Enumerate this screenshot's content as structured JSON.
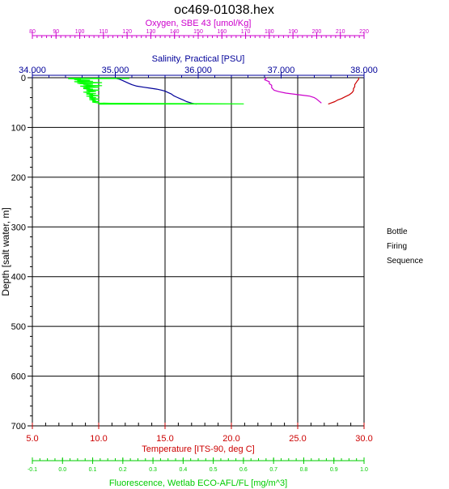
{
  "chart_data": {
    "type": "line",
    "title": "oc469-01038.hex",
    "y_axis": {
      "label": "Depth [salt water, m]",
      "range": [
        0,
        700
      ],
      "inverted": true,
      "ticks": [
        0,
        100,
        200,
        300,
        400,
        500,
        600,
        700
      ],
      "tick_labels": [
        "0",
        "100",
        "200",
        "300",
        "400",
        "500",
        "600",
        "700"
      ],
      "color": "#000000"
    },
    "x_axes": [
      {
        "id": "oxygen",
        "label": "Oxygen, SBE 43 [umol/Kg]",
        "position": "top",
        "range": [
          80,
          220
        ],
        "ticks": [
          80,
          90,
          100,
          110,
          120,
          130,
          140,
          150,
          160,
          170,
          180,
          190,
          200,
          210,
          220
        ],
        "tick_labels": [
          "80",
          "90",
          "100",
          "110",
          "120",
          "130",
          "140",
          "150",
          "160",
          "170",
          "180",
          "190",
          "200",
          "210",
          "220"
        ],
        "color": "#cc00cc"
      },
      {
        "id": "salinity",
        "label": "Salinity, Practical [PSU]",
        "position": "top",
        "range": [
          34.0,
          38.0
        ],
        "ticks": [
          34.0,
          35.0,
          36.0,
          37.0,
          38.0
        ],
        "tick_labels": [
          "34.000",
          "35.000",
          "36.000",
          "37.000",
          "38.000"
        ],
        "color": "#000099"
      },
      {
        "id": "temperature",
        "label": "Temperature [ITS-90, deg C]",
        "position": "bottom",
        "range": [
          5.0,
          30.0
        ],
        "ticks": [
          5,
          10,
          15,
          20,
          25,
          30
        ],
        "tick_labels": [
          "5.0",
          "10.0",
          "15.0",
          "20.0",
          "25.0",
          "30.0"
        ],
        "color": "#cc0000"
      },
      {
        "id": "fluorescence",
        "label": "Fluorescence, Wetlab ECO-AFL/FL [mg/m^3]",
        "position": "bottom",
        "range": [
          -0.1,
          1.0
        ],
        "ticks": [
          -0.1,
          0.0,
          0.1,
          0.2,
          0.3,
          0.4,
          0.5,
          0.6,
          0.7,
          0.8,
          0.9,
          1.0
        ],
        "tick_labels": [
          "-0.1",
          "0.0",
          "0.1",
          "0.2",
          "0.3",
          "0.4",
          "0.5",
          "0.6",
          "0.7",
          "0.8",
          "0.9",
          "1.0"
        ],
        "color": "#00cc00"
      }
    ],
    "grid": true,
    "series": [
      {
        "name": "Salinity, Practical [PSU]",
        "axis": "salinity",
        "color": "#000099",
        "points": [
          [
            35.02,
            0
          ],
          [
            35.02,
            2
          ],
          [
            35.05,
            3
          ],
          [
            35.08,
            5
          ],
          [
            35.12,
            8
          ],
          [
            35.16,
            11
          ],
          [
            35.2,
            14
          ],
          [
            35.26,
            17
          ],
          [
            35.34,
            19
          ],
          [
            35.42,
            21
          ],
          [
            35.5,
            23
          ],
          [
            35.56,
            25
          ],
          [
            35.6,
            27
          ],
          [
            35.64,
            30
          ],
          [
            35.68,
            33
          ],
          [
            35.7,
            36
          ],
          [
            35.74,
            39
          ],
          [
            35.78,
            42
          ],
          [
            35.82,
            45
          ],
          [
            35.86,
            48
          ],
          [
            35.9,
            50
          ],
          [
            35.94,
            52
          ],
          [
            35.98,
            53
          ]
        ]
      },
      {
        "name": "Oxygen, SBE 43 [umol/Kg]",
        "axis": "oxygen",
        "color": "#cc00cc",
        "points": [
          [
            179,
            0
          ],
          [
            178.5,
            2
          ],
          [
            178,
            4
          ],
          [
            179,
            6
          ],
          [
            180,
            8
          ],
          [
            180,
            12
          ],
          [
            181,
            15
          ],
          [
            181,
            20
          ],
          [
            182,
            25
          ],
          [
            184,
            28
          ],
          [
            187,
            31
          ],
          [
            192,
            34
          ],
          [
            197,
            37
          ],
          [
            199,
            40
          ],
          [
            200,
            43
          ],
          [
            201,
            47
          ],
          [
            202,
            51
          ]
        ]
      },
      {
        "name": "Temperature [ITS-90, deg C]",
        "axis": "temperature",
        "color": "#cc0000",
        "points": [
          [
            29.6,
            0
          ],
          [
            29.6,
            3
          ],
          [
            29.5,
            6
          ],
          [
            29.4,
            10
          ],
          [
            29.3,
            14
          ],
          [
            29.3,
            18
          ],
          [
            29.2,
            22
          ],
          [
            29.2,
            26
          ],
          [
            29.1,
            30
          ],
          [
            28.9,
            34
          ],
          [
            28.6,
            38
          ],
          [
            28.3,
            42
          ],
          [
            28.0,
            45
          ],
          [
            27.8,
            48
          ],
          [
            27.5,
            51
          ],
          [
            27.3,
            53
          ]
        ]
      },
      {
        "name": "Fluorescence, Wetlab ECO-AFL/FL [mg/m^3]",
        "axis": "fluorescence",
        "color": "#00ff00",
        "points": [
          [
            0.02,
            1
          ],
          [
            0.22,
            1.5
          ],
          [
            0.02,
            2
          ],
          [
            0.06,
            3
          ],
          [
            0.04,
            4
          ],
          [
            0.09,
            5
          ],
          [
            0.05,
            6
          ],
          [
            0.1,
            7
          ],
          [
            0.04,
            8
          ],
          [
            0.06,
            9
          ],
          [
            0.13,
            10
          ],
          [
            0.05,
            11
          ],
          [
            0.06,
            12
          ],
          [
            0.1,
            13
          ],
          [
            0.07,
            14
          ],
          [
            0.08,
            15
          ],
          [
            0.13,
            16
          ],
          [
            0.06,
            17
          ],
          [
            0.08,
            18
          ],
          [
            0.12,
            19
          ],
          [
            0.07,
            20
          ],
          [
            0.09,
            21
          ],
          [
            0.07,
            22
          ],
          [
            0.1,
            23
          ],
          [
            0.08,
            24
          ],
          [
            0.12,
            25
          ],
          [
            0.08,
            26
          ],
          [
            0.09,
            27
          ],
          [
            0.11,
            28
          ],
          [
            0.07,
            29
          ],
          [
            0.09,
            30
          ],
          [
            0.08,
            31
          ],
          [
            0.11,
            32
          ],
          [
            0.08,
            33
          ],
          [
            0.1,
            34
          ],
          [
            0.09,
            35
          ],
          [
            0.12,
            36
          ],
          [
            0.08,
            37
          ],
          [
            0.1,
            38
          ],
          [
            0.09,
            39
          ],
          [
            0.11,
            40
          ],
          [
            0.09,
            41
          ],
          [
            0.1,
            42
          ],
          [
            0.12,
            43
          ],
          [
            0.09,
            44
          ],
          [
            0.1,
            45
          ],
          [
            0.11,
            46
          ],
          [
            0.1,
            47
          ],
          [
            0.12,
            48
          ],
          [
            0.1,
            49
          ],
          [
            0.11,
            50
          ],
          [
            0.12,
            51
          ],
          [
            0.16,
            51.5
          ],
          [
            0.29,
            52
          ],
          [
            0.6,
            52.5
          ],
          [
            0.12,
            53
          ]
        ]
      }
    ],
    "side_label": [
      "Bottle",
      "Firing",
      "Sequence"
    ]
  }
}
